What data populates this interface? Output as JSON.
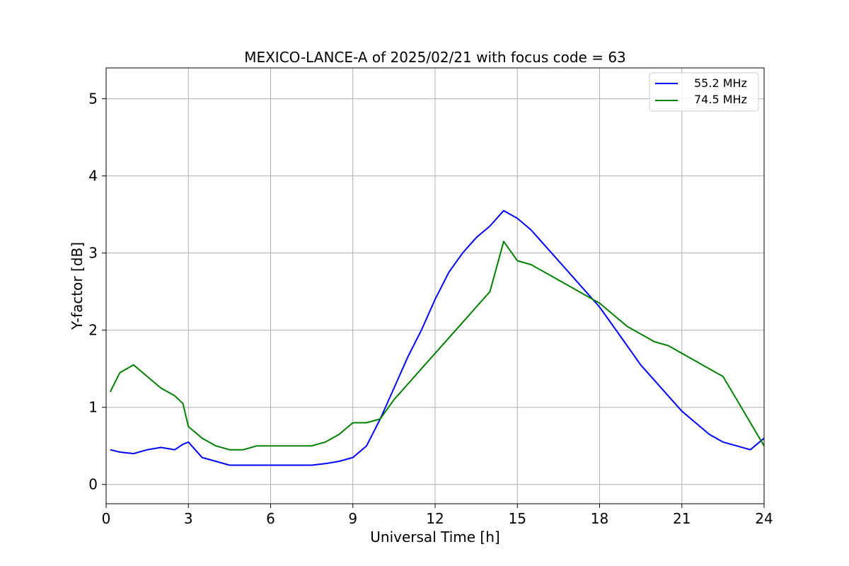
{
  "chart_data": {
    "type": "line",
    "title": "MEXICO-LANCE-A of 2025/02/21 with focus code = 63",
    "xlabel": "Universal Time [h]",
    "ylabel": "Y-factor [dB]",
    "xlim": [
      0,
      24
    ],
    "ylim": [
      -0.25,
      5.4
    ],
    "xticks": [
      0,
      3,
      6,
      9,
      12,
      15,
      18,
      21,
      24
    ],
    "yticks": [
      0,
      1,
      2,
      3,
      4,
      5
    ],
    "grid": true,
    "legend_position": "top-right",
    "series": [
      {
        "name": "55.2 MHz",
        "color": "#0000ff",
        "x": [
          0.15,
          0.5,
          1,
          1.5,
          2,
          2.5,
          2.8,
          3,
          3.5,
          4,
          4.5,
          5,
          5.5,
          6,
          6.5,
          7,
          7.5,
          8,
          8.5,
          9,
          9.5,
          10,
          10.5,
          11,
          11.5,
          12,
          12.5,
          13,
          13.5,
          14,
          14.5,
          15,
          15.5,
          16,
          16.5,
          17,
          17.5,
          18,
          18.5,
          19,
          19.5,
          20,
          20.5,
          21,
          21.5,
          22,
          22.5,
          23,
          23.5,
          24
        ],
        "y": [
          0.45,
          0.42,
          0.4,
          0.45,
          0.48,
          0.45,
          0.52,
          0.55,
          0.35,
          0.3,
          0.25,
          0.25,
          0.25,
          0.25,
          0.25,
          0.25,
          0.25,
          0.27,
          0.3,
          0.35,
          0.5,
          0.85,
          1.25,
          1.65,
          2.0,
          2.4,
          2.75,
          3.0,
          3.2,
          3.35,
          3.55,
          3.45,
          3.3,
          3.1,
          2.9,
          2.7,
          2.5,
          2.3,
          2.05,
          1.8,
          1.55,
          1.35,
          1.15,
          0.95,
          0.8,
          0.65,
          0.55,
          0.5,
          0.45,
          0.6
        ]
      },
      {
        "name": "74.5 MHz",
        "color": "#008000",
        "x": [
          0.15,
          0.5,
          1,
          1.5,
          2,
          2.5,
          2.8,
          3,
          3.5,
          4,
          4.5,
          5,
          5.5,
          6,
          6.5,
          7,
          7.5,
          8,
          8.5,
          9,
          9.5,
          10,
          10.5,
          11,
          11.5,
          12,
          12.5,
          13,
          13.5,
          14,
          14.5,
          15,
          15.5,
          16,
          16.5,
          17,
          17.5,
          18,
          18.5,
          19,
          19.5,
          20,
          20.5,
          21,
          21.5,
          22,
          22.5,
          23,
          23.5,
          24
        ],
        "y": [
          1.2,
          1.45,
          1.55,
          1.4,
          1.25,
          1.15,
          1.05,
          0.75,
          0.6,
          0.5,
          0.45,
          0.45,
          0.5,
          0.5,
          0.5,
          0.5,
          0.5,
          0.55,
          0.65,
          0.8,
          0.8,
          0.85,
          1.1,
          1.3,
          1.5,
          1.7,
          1.9,
          2.1,
          2.3,
          2.5,
          3.15,
          2.9,
          2.85,
          2.75,
          2.65,
          2.55,
          2.45,
          2.35,
          2.2,
          2.05,
          1.95,
          1.85,
          1.8,
          1.7,
          1.6,
          1.5,
          1.4,
          1.1,
          0.8,
          0.5
        ]
      }
    ]
  }
}
